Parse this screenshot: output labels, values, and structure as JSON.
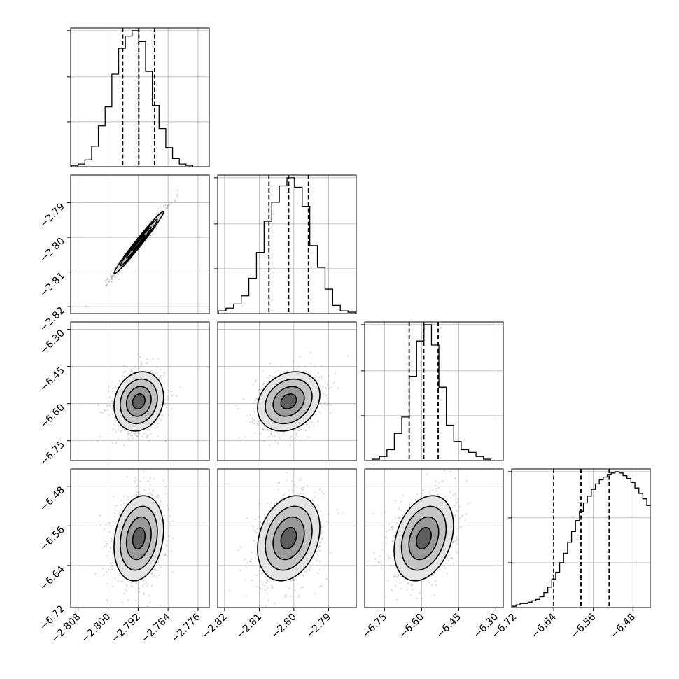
{
  "chart_data": {
    "type": "scatter",
    "plot_kind": "corner",
    "title": "",
    "parameters": [
      "",
      "",
      "",
      ""
    ],
    "grid": true,
    "quantiles": [
      0.16,
      0.5,
      0.84
    ],
    "axes": [
      {
        "range": [
          -2.81,
          -2.773
        ],
        "ticks": [
          -2.808,
          -2.8,
          -2.792,
          -2.784,
          -2.776
        ],
        "tick_labels": [
          "−2.808",
          "−2.800",
          "−2.792",
          "−2.784",
          "−2.776"
        ]
      },
      {
        "range": [
          -2.822,
          -2.782
        ],
        "ticks": [
          -2.82,
          -2.81,
          -2.8,
          -2.79
        ],
        "tick_labels": [
          "−2.82",
          "−2.81",
          "−2.80",
          "−2.79"
        ]
      },
      {
        "range": [
          -6.83,
          -6.27
        ],
        "ticks": [
          -6.75,
          -6.6,
          -6.45,
          -6.3
        ],
        "tick_labels": [
          "−6.75",
          "−6.60",
          "−6.45",
          "−6.30"
        ]
      },
      {
        "range": [
          -6.725,
          -6.445
        ],
        "ticks": [
          -6.72,
          -6.64,
          -6.56,
          -6.48
        ],
        "tick_labels": [
          "−6.72",
          "−6.64",
          "−6.56",
          "−6.48"
        ]
      }
    ],
    "diagonal_ylim": [
      0,
      1.02
    ],
    "histograms": [
      {
        "bin_edges": [
          -2.8098,
          -2.808,
          -2.8062,
          -2.8044,
          -2.8026,
          -2.8008,
          -2.799,
          -2.7972,
          -2.7954,
          -2.7936,
          -2.7918,
          -2.79,
          -2.7882,
          -2.7864,
          -2.7846,
          -2.7828,
          -2.781,
          -2.7792,
          -2.7774
        ],
        "counts": [
          0.01,
          0.02,
          0.05,
          0.15,
          0.3,
          0.44,
          0.68,
          0.87,
          0.96,
          1.0,
          0.92,
          0.7,
          0.45,
          0.28,
          0.14,
          0.06,
          0.02,
          0.01
        ],
        "quantiles": [
          -2.7961,
          -2.7918,
          -2.7876
        ]
      },
      {
        "bin_edges": [
          -2.8218,
          -2.8196,
          -2.8174,
          -2.8152,
          -2.813,
          -2.8108,
          -2.8086,
          -2.8064,
          -2.8042,
          -2.802,
          -2.7998,
          -2.7976,
          -2.7954,
          -2.7932,
          -2.791,
          -2.7888,
          -2.7866,
          -2.7844,
          -2.7822
        ],
        "counts": [
          0.02,
          0.04,
          0.07,
          0.13,
          0.26,
          0.45,
          0.68,
          0.82,
          0.94,
          1.0,
          0.93,
          0.79,
          0.5,
          0.34,
          0.18,
          0.06,
          0.02,
          0.01
        ],
        "quantiles": [
          -2.8072,
          -2.8015,
          -2.7958
        ]
      },
      {
        "bin_edges": [
          -6.8,
          -6.77,
          -6.74,
          -6.71,
          -6.68,
          -6.65,
          -6.62,
          -6.59,
          -6.56,
          -6.53,
          -6.5,
          -6.47,
          -6.44,
          -6.41,
          -6.38,
          -6.35,
          -6.32
        ],
        "counts": [
          0.01,
          0.03,
          0.08,
          0.2,
          0.32,
          0.62,
          0.88,
          1.0,
          0.85,
          0.54,
          0.26,
          0.14,
          0.08,
          0.06,
          0.03,
          0.01
        ],
        "quantiles": [
          -6.65,
          -6.591,
          -6.533
        ]
      },
      {
        "bin_edges": [
          -6.732,
          -6.724,
          -6.716,
          -6.708,
          -6.7,
          -6.692,
          -6.684,
          -6.676,
          -6.668,
          -6.66,
          -6.652,
          -6.644,
          -6.636,
          -6.628,
          -6.62,
          -6.612,
          -6.604,
          -6.596,
          -6.588,
          -6.58,
          -6.572,
          -6.564,
          -6.556,
          -6.548,
          -6.54,
          -6.532,
          -6.524,
          -6.516,
          -6.508,
          -6.5,
          -6.492,
          -6.484,
          -6.476,
          -6.468,
          -6.46,
          -6.452,
          -6.444
        ],
        "counts": [
          0.01,
          0.01,
          0.02,
          0.03,
          0.03,
          0.04,
          0.05,
          0.06,
          0.08,
          0.11,
          0.15,
          0.21,
          0.26,
          0.33,
          0.4,
          0.48,
          0.56,
          0.64,
          0.71,
          0.77,
          0.82,
          0.87,
          0.91,
          0.94,
          0.96,
          0.98,
          0.99,
          1.0,
          0.99,
          0.97,
          0.95,
          0.92,
          0.88,
          0.84,
          0.8,
          0.75
        ],
        "quantiles": [
          -6.64,
          -6.585,
          -6.528
        ]
      }
    ],
    "pairs": [
      {
        "x_param": 0,
        "y_param": 1,
        "center": [
          -2.7918,
          -2.8015
        ],
        "sigma": [
          0.0033,
          0.0045
        ],
        "correlation": 0.985
      },
      {
        "x_param": 0,
        "y_param": 2,
        "center": [
          -2.7918,
          -6.591
        ],
        "sigma": [
          0.0033,
          0.06
        ],
        "correlation": 0.15
      },
      {
        "x_param": 1,
        "y_param": 2,
        "center": [
          -2.8015,
          -6.591
        ],
        "sigma": [
          0.0045,
          0.06
        ],
        "correlation": 0.22
      },
      {
        "x_param": 0,
        "y_param": 3,
        "center": [
          -2.7918,
          -6.585
        ],
        "sigma": [
          0.0033,
          0.043
        ],
        "correlation": 0.2
      },
      {
        "x_param": 1,
        "y_param": 3,
        "center": [
          -2.8015,
          -6.585
        ],
        "sigma": [
          0.0045,
          0.043
        ],
        "correlation": 0.25
      },
      {
        "x_param": 2,
        "y_param": 3,
        "center": [
          -6.591,
          -6.585
        ],
        "sigma": [
          0.06,
          0.043
        ],
        "correlation": 0.3
      }
    ],
    "contour_levels_sigma": [
      0.5,
      1.0,
      1.5,
      2.0
    ]
  }
}
